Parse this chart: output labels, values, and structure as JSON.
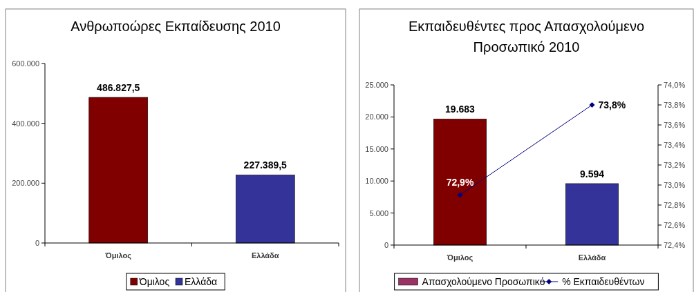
{
  "chart_data": [
    {
      "type": "bar",
      "title": "Ανθρωποώρες Εκπαίδευσης 2010",
      "categories": [
        "Όμιλος",
        "Ελλάδα"
      ],
      "legend": "bottom",
      "series": [
        {
          "name": "Όμιλος",
          "color": "#800000",
          "values": [
            486827.5,
            null
          ],
          "value_labels": [
            "486.827,5",
            null
          ]
        },
        {
          "name": "Ελλάδα",
          "color": "#333399",
          "values": [
            null,
            227389.5
          ],
          "value_labels": [
            null,
            "227.389,5"
          ]
        }
      ],
      "ylim": [
        0,
        600000
      ],
      "yticks": [
        0,
        {
          "value": 200000,
          "label": "200.000"
        },
        {
          "value": 400000,
          "label": "400.000"
        },
        {
          "value": 600000,
          "label": "600.000"
        }
      ]
    },
    {
      "type": "bar",
      "title": "Εκπαιδευθέντες προς Απασχολούμενο\nΠροσωπικό 2010",
      "categories": [
        "Όμιλος",
        "Ελλάδα"
      ],
      "legend": "bottom",
      "series": [
        {
          "name": "Απασχολούμενο Προσωπικό",
          "color": "#993366",
          "colors": [
            "#800000",
            "#333399"
          ],
          "values": [
            19683,
            9594
          ],
          "value_labels": [
            "19.683",
            "9.594"
          ]
        },
        {
          "type": "line",
          "name": "% Εκπαιδευθέντων",
          "axis": "y2",
          "color": "#000080",
          "marker": "diamond",
          "values": [
            72.9,
            73.8
          ],
          "value_labels": [
            "72,9%",
            "73,8%"
          ]
        }
      ],
      "ylim": [
        0,
        25000
      ],
      "yticks": [
        0,
        {
          "value": 5000,
          "label": "5.000"
        },
        {
          "value": 10000,
          "label": "10.000"
        },
        {
          "value": 15000,
          "label": "15.000"
        },
        {
          "value": 20000,
          "label": "20.000"
        },
        {
          "value": 25000,
          "label": "25.000"
        }
      ],
      "y2lim": [
        72.4,
        74.0
      ],
      "y2ticks": [
        {
          "value": 72.4,
          "label": "72,4%"
        },
        {
          "value": 72.6,
          "label": "72,6%"
        },
        {
          "value": 72.8,
          "label": "72,8%"
        },
        {
          "value": 73.0,
          "label": "73,0%"
        },
        {
          "value": 73.2,
          "label": "73,2%"
        },
        {
          "value": 73.4,
          "label": "73,4%"
        },
        {
          "value": 73.6,
          "label": "73,6%"
        },
        {
          "value": 73.8,
          "label": "73,8%"
        },
        {
          "value": 74.0,
          "label": "74,0%"
        }
      ]
    }
  ]
}
